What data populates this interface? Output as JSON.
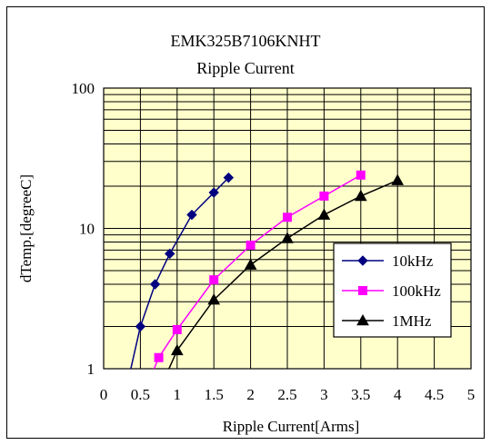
{
  "chart_data": {
    "type": "line",
    "title": "EMK325B7106KNHT",
    "subtitle": "Ripple Current",
    "xlabel": "Ripple Current[Arms]",
    "ylabel": "dTemp.[degreeC]",
    "x_ticks": [
      "0",
      "0.5",
      "1",
      "1.5",
      "2",
      "2.5",
      "3",
      "3.5",
      "4",
      "4.5",
      "5"
    ],
    "y_ticks": [
      "1",
      "10",
      "100"
    ],
    "xlim": [
      0,
      5
    ],
    "ylim": [
      1,
      100
    ],
    "y_scale": "log",
    "grid": true,
    "legend_position": "right-middle",
    "plot_background": "#FFFFCC",
    "series": [
      {
        "name": "10kHz",
        "color": "#000080",
        "marker": "diamond",
        "x": [
          0.35,
          0.5,
          0.7,
          0.9,
          1.2,
          1.5,
          1.7
        ],
        "y": [
          0.9,
          2.0,
          4.0,
          6.6,
          12.5,
          18.0,
          23.0
        ]
      },
      {
        "name": "100kHz",
        "color": "#FF00FF",
        "marker": "square",
        "x": [
          0.65,
          0.75,
          1.0,
          1.5,
          2.0,
          2.5,
          3.0,
          3.5
        ],
        "y": [
          0.9,
          1.2,
          1.9,
          4.3,
          7.6,
          12.0,
          17.0,
          24.0
        ]
      },
      {
        "name": "1MHz",
        "color": "#000000",
        "marker": "triangle",
        "x": [
          0.85,
          1.0,
          1.5,
          2.0,
          2.5,
          3.0,
          3.5,
          4.0
        ],
        "y": [
          0.9,
          1.35,
          3.1,
          5.5,
          8.5,
          12.5,
          17.0,
          22.0
        ]
      }
    ]
  }
}
